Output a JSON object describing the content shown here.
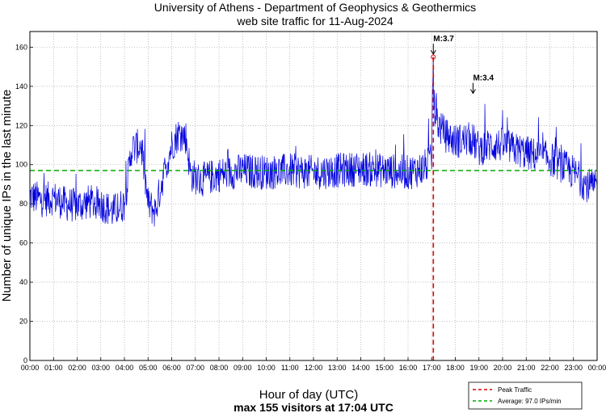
{
  "chart_data": {
    "type": "line",
    "title": "University of Athens - Department of Geophysics & Geothermics",
    "subtitle": "web site traffic for 11-Aug-2024",
    "xlabel": "Hour of day (UTC)",
    "ylabel": "Number of unique IPs in the last minute",
    "footer": "max 155 visitors at 17:04 UTC",
    "xlim": [
      0,
      24
    ],
    "ylim": [
      0,
      168
    ],
    "yticks": [
      0,
      20,
      40,
      60,
      80,
      100,
      120,
      140,
      160
    ],
    "ytick_labels": [
      "0",
      "20",
      "40",
      "60",
      "80",
      "100",
      "120",
      "140",
      "160"
    ],
    "xtick_labels": [
      "00:00",
      "01:00",
      "02:00",
      "03:00",
      "04:00",
      "05:00",
      "06:00",
      "07:00",
      "08:00",
      "09:00",
      "10:00",
      "11:00",
      "12:00",
      "13:00",
      "14:00",
      "15:00",
      "16:00",
      "17:00",
      "18:00",
      "19:00",
      "20:00",
      "21:00",
      "22:00",
      "23:00",
      "00:00"
    ],
    "grid": true,
    "series_color": "#0000dd",
    "traffic_profile": {
      "hours": [
        0.0,
        0.5,
        1.0,
        1.5,
        2.0,
        2.5,
        3.0,
        3.5,
        4.0,
        4.3,
        4.7,
        5.0,
        5.3,
        5.6,
        6.0,
        6.3,
        6.6,
        6.8,
        7.2,
        8.0,
        9.0,
        10.0,
        11.0,
        12.0,
        13.0,
        14.0,
        15.0,
        16.0,
        16.6,
        17.0,
        17.05,
        17.1,
        17.3,
        17.6,
        18.0,
        18.7,
        19.0,
        19.5,
        20.0,
        21.0,
        22.0,
        23.0,
        23.5,
        24.0
      ],
      "values": [
        84,
        82,
        83,
        80,
        79,
        81,
        80,
        76,
        80,
        108,
        110,
        80,
        76,
        92,
        110,
        116,
        114,
        95,
        92,
        95,
        97,
        96,
        97,
        96,
        97,
        98,
        97,
        96,
        98,
        102,
        150,
        130,
        120,
        115,
        112,
        113,
        108,
        110,
        110,
        106,
        103,
        96,
        90,
        88
      ],
      "noise_amplitude": 9
    },
    "average": {
      "value": 97.0,
      "label": "Average: 97.0 IPs/min",
      "color": "#00aa00"
    },
    "peak": {
      "hour": 17.07,
      "value": 155,
      "label": "Peak Traffic",
      "color": "#dd0000"
    },
    "annotations": [
      {
        "text": "M:3.7",
        "hour": 17.07,
        "value": 156
      },
      {
        "text": "M:3.4",
        "hour": 18.75,
        "value": 136
      }
    ]
  }
}
